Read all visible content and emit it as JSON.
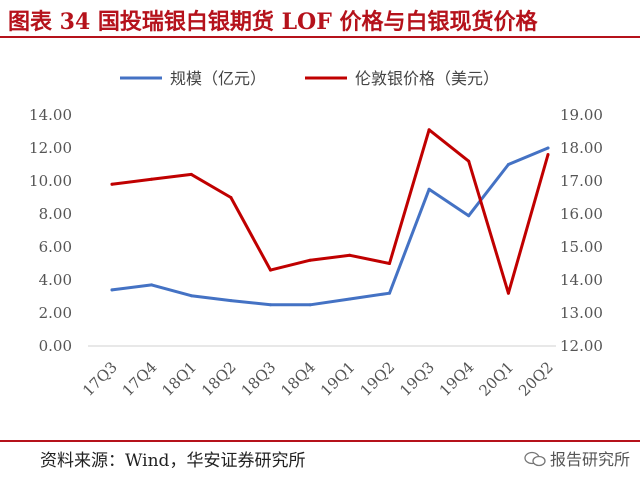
{
  "header": {
    "title": "图表 34 国投瑞银白银期货 LOF 价格与白银现货价格"
  },
  "footer": {
    "source": "资料来源：Wind，华安证券研究所",
    "watermark": "报告研究所"
  },
  "colors": {
    "accent": "#b5121b",
    "series_blue": "#4472c4",
    "series_red": "#c00000"
  },
  "chart_data": {
    "type": "line",
    "categories": [
      "17Q3",
      "17Q4",
      "18Q1",
      "18Q2",
      "18Q3",
      "18Q4",
      "19Q1",
      "19Q2",
      "19Q3",
      "19Q4",
      "20Q1",
      "20Q2"
    ],
    "series": [
      {
        "name": "规模（亿元）",
        "axis": "left",
        "color": "#4472c4",
        "values": [
          3.4,
          3.7,
          3.05,
          2.75,
          2.5,
          2.5,
          2.85,
          3.2,
          9.5,
          7.9,
          11.0,
          12.0
        ]
      },
      {
        "name": "伦敦银价格（美元）",
        "axis": "right",
        "color": "#c00000",
        "values": [
          16.9,
          17.05,
          17.2,
          16.5,
          14.3,
          14.6,
          14.75,
          14.5,
          18.55,
          17.6,
          13.6,
          17.8
        ]
      }
    ],
    "y_left": {
      "ylim": [
        0,
        14
      ],
      "ticks": [
        "0.00",
        "2.00",
        "4.00",
        "6.00",
        "8.00",
        "10.00",
        "12.00",
        "14.00"
      ]
    },
    "y_right": {
      "ylim": [
        12,
        19
      ],
      "ticks": [
        "12.00",
        "13.00",
        "14.00",
        "15.00",
        "16.00",
        "17.00",
        "18.00",
        "19.00"
      ]
    },
    "grid": false,
    "legend": "top"
  }
}
